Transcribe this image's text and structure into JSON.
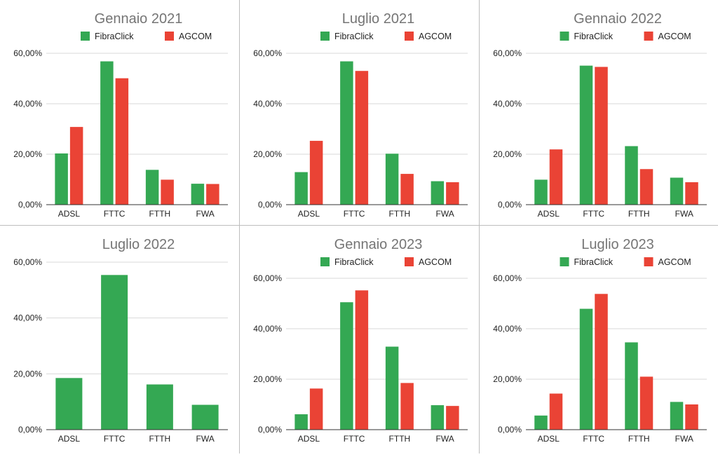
{
  "colors": {
    "FibraClick": "#34a853",
    "AGCOM": "#ea4335"
  },
  "chart_data": [
    {
      "type": "bar",
      "title": "Gennaio 2021",
      "categories": [
        "ADSL",
        "FTTC",
        "FTTH",
        "FWA"
      ],
      "ylim": [
        0,
        60
      ],
      "yticks": [
        "0,00%",
        "20,00%",
        "40,00%",
        "60,00%"
      ],
      "legend": "top",
      "grid": true,
      "series": [
        {
          "name": "FibraClick",
          "values": [
            20.3,
            56.8,
            13.8,
            8.3
          ]
        },
        {
          "name": "AGCOM",
          "values": [
            30.8,
            50.1,
            9.9,
            8.2
          ]
        }
      ]
    },
    {
      "type": "bar",
      "title": "Luglio 2021",
      "categories": [
        "ADSL",
        "FTTC",
        "FTTH",
        "FWA"
      ],
      "ylim": [
        0,
        60
      ],
      "yticks": [
        "0,00%",
        "20,00%",
        "40,00%",
        "60,00%"
      ],
      "legend": "top",
      "grid": true,
      "series": [
        {
          "name": "FibraClick",
          "values": [
            12.9,
            56.8,
            20.2,
            9.3
          ]
        },
        {
          "name": "AGCOM",
          "values": [
            25.3,
            53.0,
            12.2,
            8.9
          ]
        }
      ]
    },
    {
      "type": "bar",
      "title": "Gennaio 2022",
      "categories": [
        "ADSL",
        "FTTC",
        "FTTH",
        "FWA"
      ],
      "ylim": [
        0,
        60
      ],
      "yticks": [
        "0,00%",
        "20,00%",
        "40,00%",
        "60,00%"
      ],
      "legend": "top",
      "grid": true,
      "series": [
        {
          "name": "FibraClick",
          "values": [
            9.9,
            55.1,
            23.2,
            10.7
          ]
        },
        {
          "name": "AGCOM",
          "values": [
            21.9,
            54.6,
            14.1,
            8.9
          ]
        }
      ]
    },
    {
      "type": "bar",
      "title": "Luglio 2022",
      "categories": [
        "ADSL",
        "FTTC",
        "FTTH",
        "FWA"
      ],
      "ylim": [
        0,
        60
      ],
      "yticks": [
        "0,00%",
        "20,00%",
        "40,00%",
        "60,00%"
      ],
      "legend": "none",
      "grid": true,
      "series": [
        {
          "values": [
            18.5,
            55.4,
            16.2,
            8.9
          ]
        }
      ]
    },
    {
      "type": "bar",
      "title": "Gennaio 2023",
      "categories": [
        "ADSL",
        "FTTC",
        "FTTH",
        "FWA"
      ],
      "ylim": [
        0,
        60
      ],
      "yticks": [
        "0,00%",
        "20,00%",
        "40,00%",
        "60,00%"
      ],
      "legend": "top",
      "grid": true,
      "series": [
        {
          "name": "FibraClick",
          "values": [
            6.1,
            50.5,
            32.9,
            9.7
          ]
        },
        {
          "name": "AGCOM",
          "values": [
            16.3,
            55.2,
            18.5,
            9.4
          ]
        }
      ]
    },
    {
      "type": "bar",
      "title": "Luglio 2023",
      "categories": [
        "ADSL",
        "FTTC",
        "FTTH",
        "FWA"
      ],
      "ylim": [
        0,
        60
      ],
      "yticks": [
        "0,00%",
        "20,00%",
        "40,00%",
        "60,00%"
      ],
      "legend": "top",
      "grid": true,
      "series": [
        {
          "name": "FibraClick",
          "values": [
            5.6,
            47.9,
            34.6,
            11.0
          ]
        },
        {
          "name": "AGCOM",
          "values": [
            14.3,
            53.8,
            21.0,
            10.0
          ]
        }
      ]
    }
  ]
}
